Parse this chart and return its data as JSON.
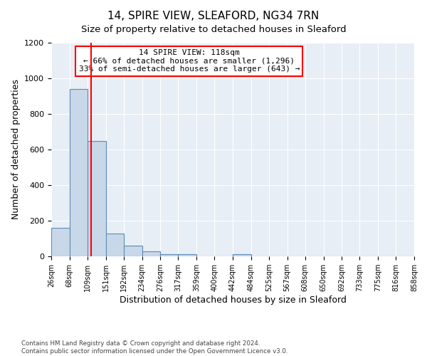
{
  "title": "14, SPIRE VIEW, SLEAFORD, NG34 7RN",
  "subtitle": "Size of property relative to detached houses in Sleaford",
  "xlabel": "Distribution of detached houses by size in Sleaford",
  "ylabel": "Number of detached properties",
  "footnote1": "Contains HM Land Registry data © Crown copyright and database right 2024.",
  "footnote2": "Contains public sector information licensed under the Open Government Licence v3.0.",
  "bar_edges": [
    26,
    68,
    109,
    151,
    192,
    234,
    276,
    317,
    359,
    400,
    442,
    484,
    525,
    567,
    608,
    650,
    692,
    733,
    775,
    816,
    858
  ],
  "bar_heights": [
    160,
    940,
    650,
    130,
    60,
    28,
    13,
    12,
    0,
    0,
    12,
    0,
    0,
    0,
    0,
    0,
    0,
    0,
    0,
    0
  ],
  "bar_color": "#c8d8e8",
  "bar_edge_color": "#5b8db8",
  "red_line_x": 118,
  "ylim": [
    0,
    1200
  ],
  "yticks": [
    0,
    200,
    400,
    600,
    800,
    1000,
    1200
  ],
  "bg_color": "#e8eef5",
  "grid_color": "#ffffff",
  "annotation_title": "14 SPIRE VIEW: 118sqm",
  "annotation_line1": "← 66% of detached houses are smaller (1,296)",
  "annotation_line2": "33% of semi-detached houses are larger (643) →",
  "title_fontsize": 11,
  "subtitle_fontsize": 9.5,
  "xlabel_fontsize": 9,
  "ylabel_fontsize": 9,
  "tick_fontsize": 7,
  "annot_fontsize": 8,
  "tick_labels": [
    "26sqm",
    "68sqm",
    "109sqm",
    "151sqm",
    "192sqm",
    "234sqm",
    "276sqm",
    "317sqm",
    "359sqm",
    "400sqm",
    "442sqm",
    "484sqm",
    "525sqm",
    "567sqm",
    "608sqm",
    "650sqm",
    "692sqm",
    "733sqm",
    "775sqm",
    "816sqm",
    "858sqm"
  ]
}
